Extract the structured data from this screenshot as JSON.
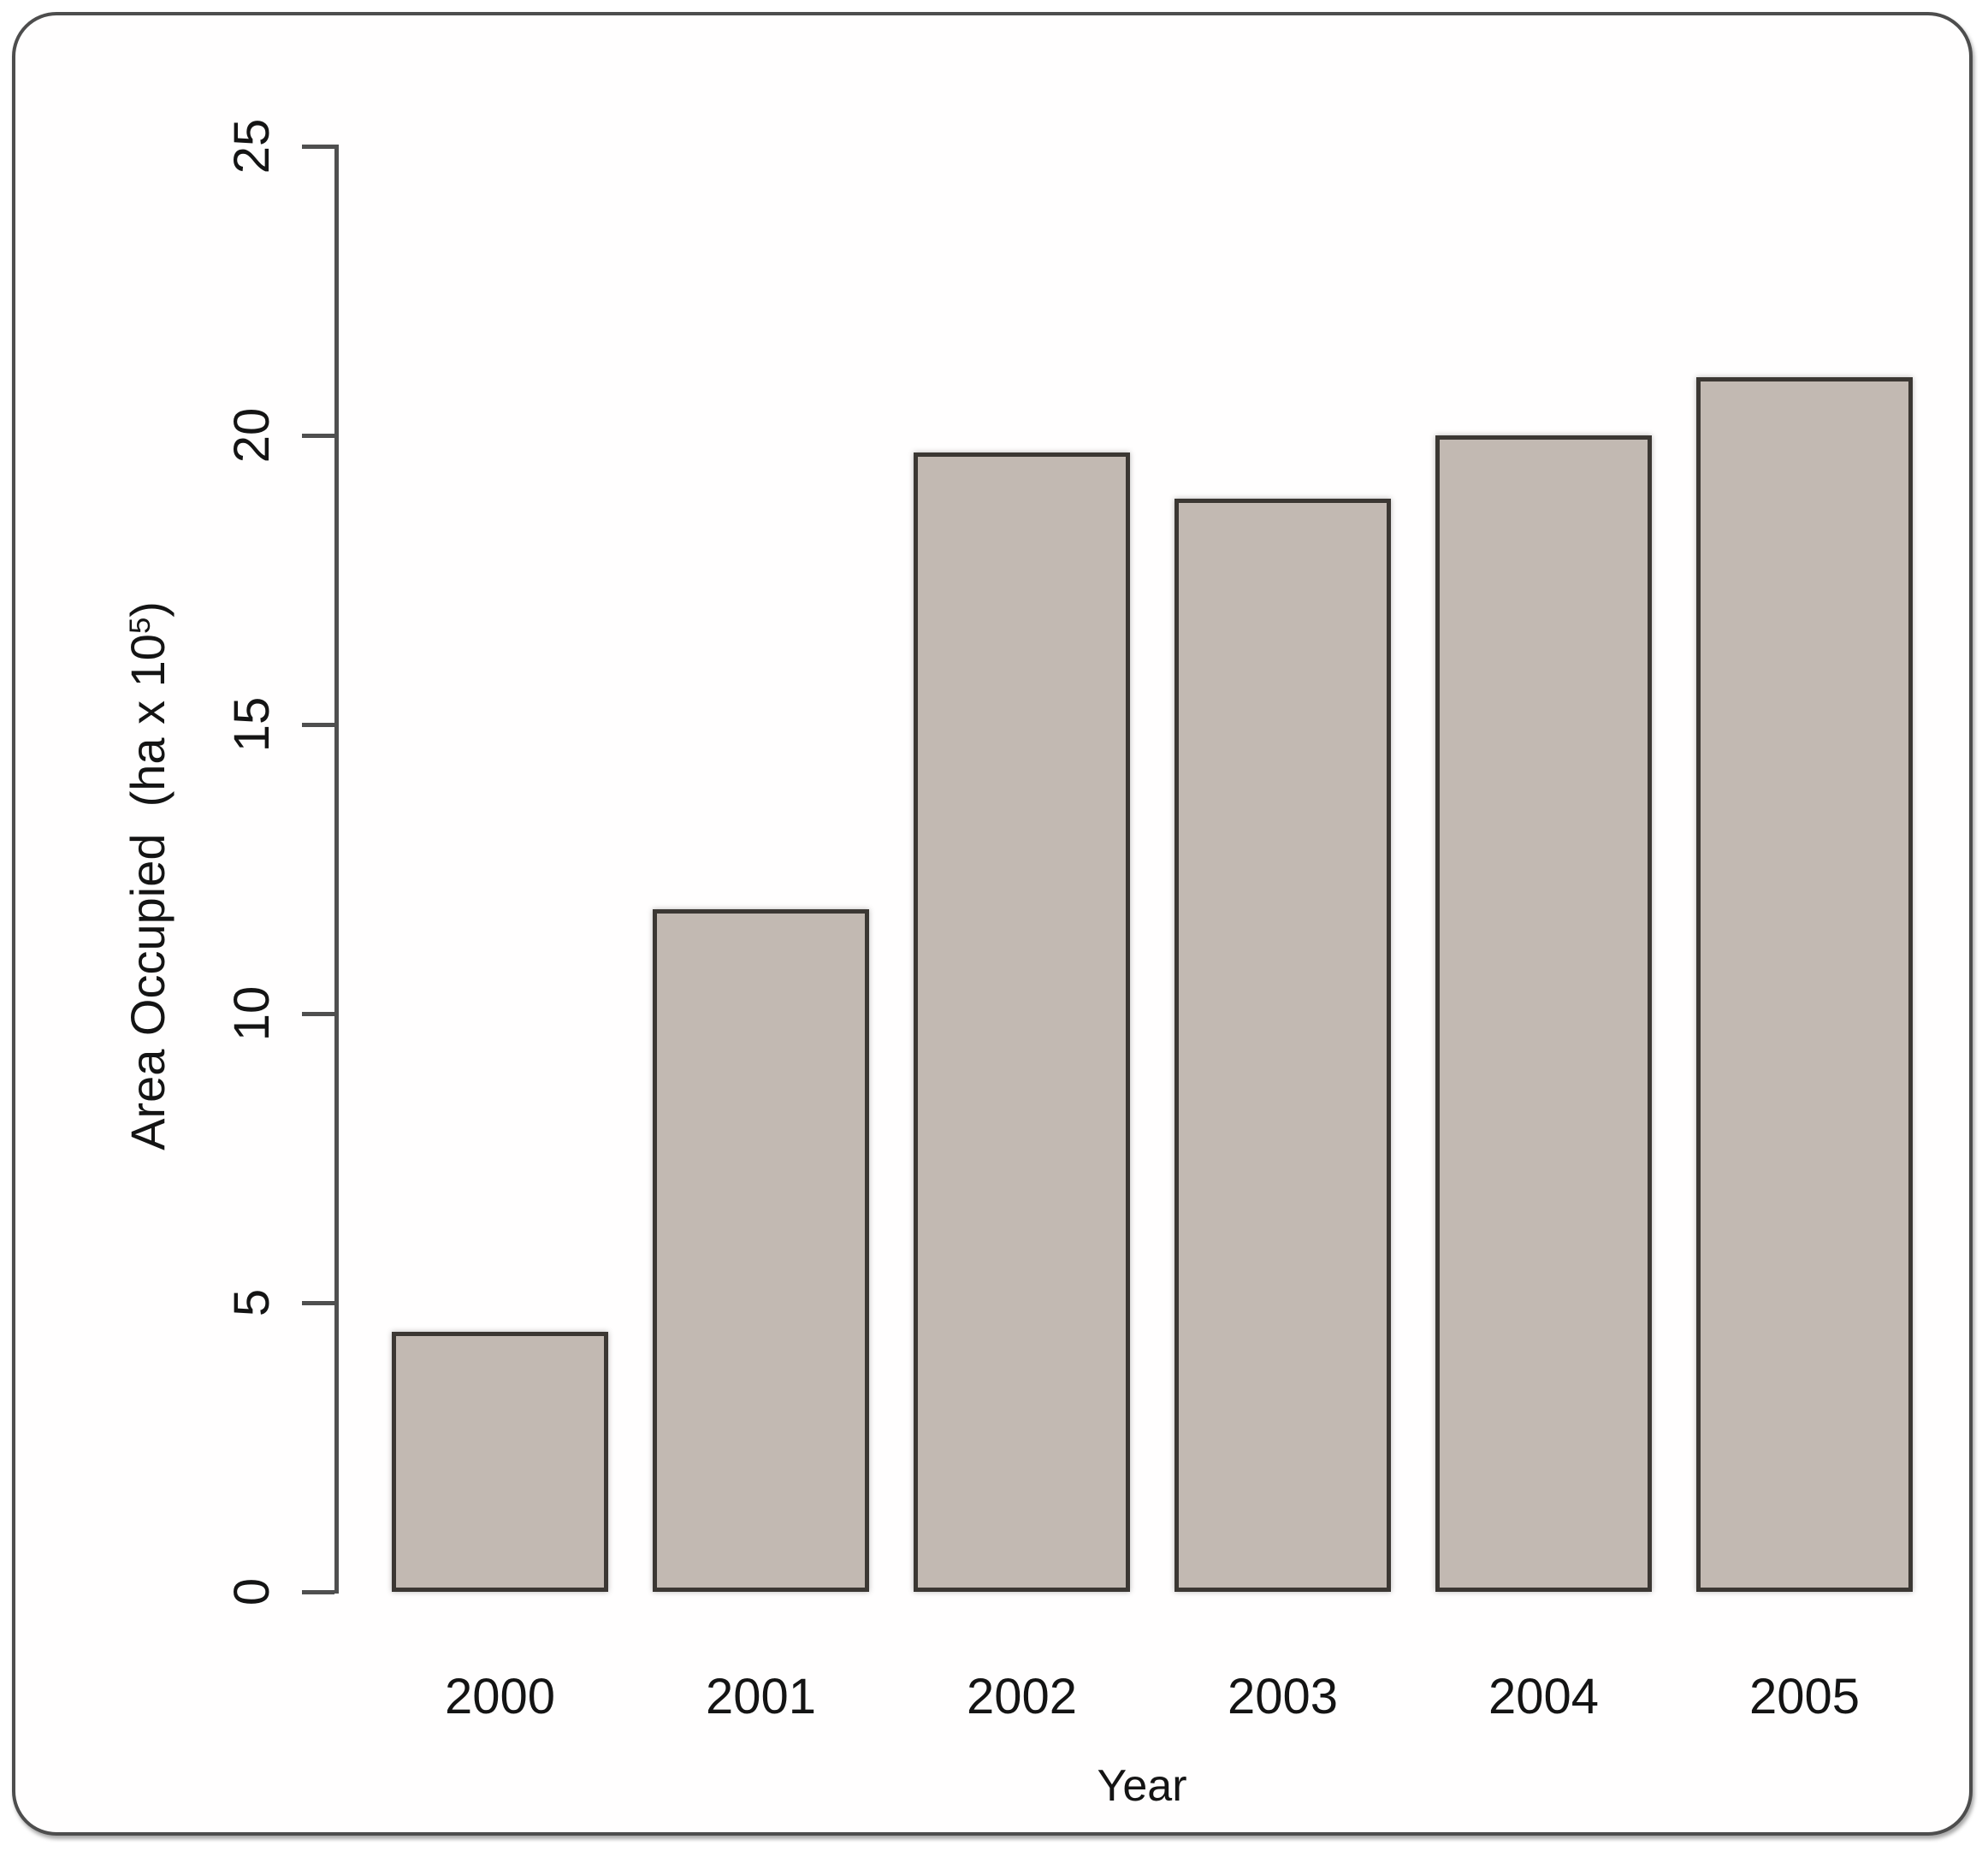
{
  "figure": {
    "background": "#ffffff",
    "frame_border_color": "#4d4d4d"
  },
  "chart_data": {
    "type": "bar",
    "title": "",
    "categories": [
      "2000",
      "2001",
      "2002",
      "2003",
      "2004",
      "2005"
    ],
    "values": [
      4.5,
      11.8,
      19.7,
      18.9,
      20,
      21
    ],
    "xlabel": "Year",
    "ylabel": "Area Occupied (ha x 10^5)",
    "ylabel_prefix": "Area Occupied  (ha x 10",
    "ylabel_superscript": "5",
    "ylabel_suffix": ")",
    "ylim": [
      0,
      25
    ],
    "yticks": [
      0,
      5,
      10,
      15,
      20,
      25
    ],
    "grid": false,
    "legend": false,
    "bar_fill_color": "#c2b9b2",
    "bar_border_color": "#3b3733",
    "axis_color": "#4f4f4f",
    "text_color": "#141414"
  }
}
